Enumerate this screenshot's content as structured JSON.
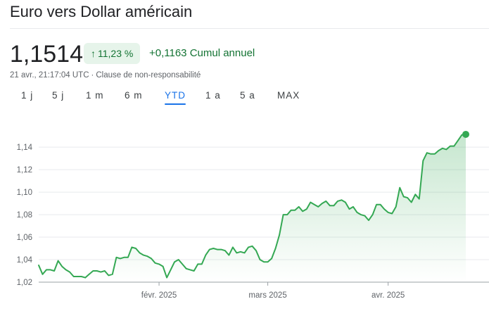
{
  "header": {
    "title": "Euro vers Dollar américain",
    "price": "1,1514",
    "change_percent": "11,23 %",
    "change_arrow": "↑",
    "change_abs": "+0,1163 Cumul annuel",
    "timestamp": "21 avr., 21:17:04 UTC",
    "separator": "·",
    "disclaimer": "Clause de non-responsabilité"
  },
  "tabs": [
    {
      "label": "1 j",
      "active": false
    },
    {
      "label": "5 j",
      "active": false
    },
    {
      "label": "1 m",
      "active": false
    },
    {
      "label": "6 m",
      "active": false
    },
    {
      "label": "YTD",
      "active": true
    },
    {
      "label": "1 a",
      "active": false
    },
    {
      "label": "5 a",
      "active": false
    },
    {
      "label": "MAX",
      "active": false
    }
  ],
  "colors": {
    "line": "#34a853",
    "fill_top": "#34a853",
    "badge_bg": "#e6f4ea",
    "positive": "#137333",
    "active_tab": "#1a73e8"
  },
  "chart_data": {
    "type": "area",
    "title": "",
    "xlabel": "",
    "ylabel": "",
    "ylim": [
      1.02,
      1.152
    ],
    "y_ticks": [
      1.02,
      1.04,
      1.06,
      1.08,
      1.1,
      1.12,
      1.14
    ],
    "y_tick_labels": [
      "1,02",
      "1,04",
      "1,06",
      "1,08",
      "1,10",
      "1,12",
      "1,14"
    ],
    "x_ticks": [
      "2025-02-01",
      "2025-03-01",
      "2025-04-01"
    ],
    "x_tick_labels": [
      "févr. 2025",
      "mars 2025",
      "avr. 2025"
    ],
    "grid": true,
    "series": [
      {
        "x": [
          "2025-01-01",
          "2025-01-02",
          "2025-01-03",
          "2025-01-04",
          "2025-01-05",
          "2025-01-06",
          "2025-01-07",
          "2025-01-08",
          "2025-01-09",
          "2025-01-10",
          "2025-01-11",
          "2025-01-12",
          "2025-01-13",
          "2025-01-14",
          "2025-01-15",
          "2025-01-16",
          "2025-01-17",
          "2025-01-18",
          "2025-01-19",
          "2025-01-20",
          "2025-01-21",
          "2025-01-22",
          "2025-01-23",
          "2025-01-24",
          "2025-01-25",
          "2025-01-26",
          "2025-01-27",
          "2025-01-28",
          "2025-01-29",
          "2025-01-30",
          "2025-01-31",
          "2025-02-01",
          "2025-02-02",
          "2025-02-03",
          "2025-02-04",
          "2025-02-05",
          "2025-02-06",
          "2025-02-07",
          "2025-02-08",
          "2025-02-09",
          "2025-02-10",
          "2025-02-11",
          "2025-02-12",
          "2025-02-13",
          "2025-02-14",
          "2025-02-15",
          "2025-02-16",
          "2025-02-17",
          "2025-02-18",
          "2025-02-19",
          "2025-02-20",
          "2025-02-21",
          "2025-02-22",
          "2025-02-23",
          "2025-02-24",
          "2025-02-25",
          "2025-02-26",
          "2025-02-27",
          "2025-02-28",
          "2025-03-01",
          "2025-03-02",
          "2025-03-03",
          "2025-03-04",
          "2025-03-05",
          "2025-03-06",
          "2025-03-07",
          "2025-03-08",
          "2025-03-09",
          "2025-03-10",
          "2025-03-11",
          "2025-03-12",
          "2025-03-13",
          "2025-03-14",
          "2025-03-15",
          "2025-03-16",
          "2025-03-17",
          "2025-03-18",
          "2025-03-19",
          "2025-03-20",
          "2025-03-21",
          "2025-03-22",
          "2025-03-23",
          "2025-03-24",
          "2025-03-25",
          "2025-03-26",
          "2025-03-27",
          "2025-03-28",
          "2025-03-29",
          "2025-03-30",
          "2025-03-31",
          "2025-04-01",
          "2025-04-02",
          "2025-04-03",
          "2025-04-04",
          "2025-04-05",
          "2025-04-06",
          "2025-04-07",
          "2025-04-08",
          "2025-04-09",
          "2025-04-10",
          "2025-04-11",
          "2025-04-12",
          "2025-04-13",
          "2025-04-14",
          "2025-04-15",
          "2025-04-16",
          "2025-04-17",
          "2025-04-18",
          "2025-04-19",
          "2025-04-20",
          "2025-04-21"
        ],
        "values": [
          1.035,
          1.027,
          1.031,
          1.031,
          1.03,
          1.039,
          1.034,
          1.031,
          1.029,
          1.025,
          1.025,
          1.025,
          1.024,
          1.027,
          1.03,
          1.03,
          1.029,
          1.03,
          1.026,
          1.027,
          1.042,
          1.041,
          1.042,
          1.042,
          1.051,
          1.05,
          1.046,
          1.044,
          1.043,
          1.041,
          1.037,
          1.036,
          1.034,
          1.024,
          1.031,
          1.038,
          1.04,
          1.036,
          1.032,
          1.031,
          1.03,
          1.036,
          1.036,
          1.044,
          1.049,
          1.05,
          1.049,
          1.049,
          1.048,
          1.044,
          1.051,
          1.046,
          1.047,
          1.046,
          1.051,
          1.052,
          1.048,
          1.04,
          1.038,
          1.038,
          1.041,
          1.05,
          1.062,
          1.08,
          1.08,
          1.084,
          1.084,
          1.087,
          1.083,
          1.085,
          1.091,
          1.089,
          1.087,
          1.09,
          1.092,
          1.088,
          1.088,
          1.092,
          1.093,
          1.091,
          1.085,
          1.087,
          1.082,
          1.08,
          1.079,
          1.075,
          1.08,
          1.089,
          1.089,
          1.085,
          1.082,
          1.081,
          1.087,
          1.104,
          1.096,
          1.095,
          1.091,
          1.098,
          1.094,
          1.128,
          1.135,
          1.134,
          1.134,
          1.137,
          1.139,
          1.138,
          1.141,
          1.141,
          1.146,
          1.151,
          1.1514
        ]
      }
    ]
  }
}
